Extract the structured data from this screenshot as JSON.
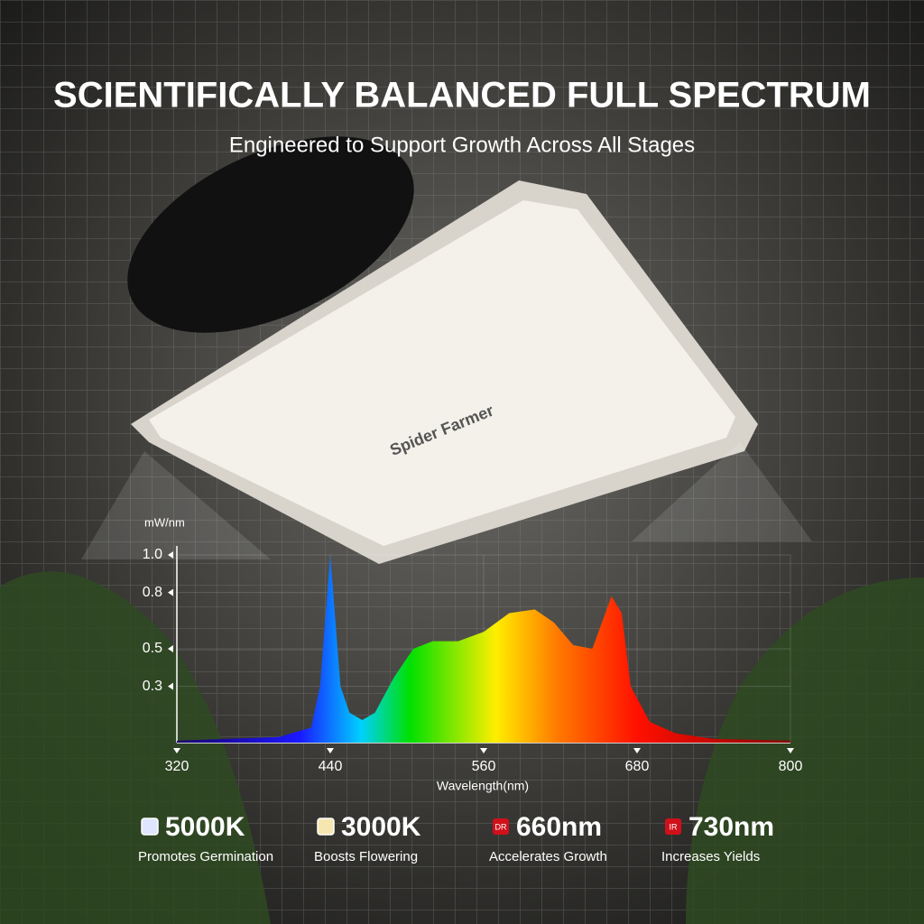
{
  "chart_data": {
    "type": "area",
    "title": "SCIENTIFICALLY BALANCED FULL SPECTRUM",
    "subtitle": "Engineered to Support Growth Across All Stages",
    "y_label": "mW/nm",
    "x_label": "Wavelength(nm)",
    "x": [
      320,
      400,
      425,
      432,
      440,
      448,
      455,
      465,
      475,
      490,
      505,
      520,
      540,
      560,
      580,
      600,
      615,
      630,
      645,
      660,
      668,
      675,
      690,
      710,
      740,
      800
    ],
    "values": [
      0.01,
      0.03,
      0.08,
      0.3,
      1.0,
      0.3,
      0.16,
      0.12,
      0.16,
      0.35,
      0.5,
      0.54,
      0.54,
      0.59,
      0.69,
      0.71,
      0.64,
      0.52,
      0.5,
      0.78,
      0.69,
      0.3,
      0.11,
      0.05,
      0.02,
      0.01
    ],
    "xlim": [
      320,
      800
    ],
    "xticks": [
      320,
      440,
      560,
      680,
      800
    ],
    "ylim": [
      0,
      1
    ],
    "yticks": [
      {
        "value": 0.3,
        "label": "0.3"
      },
      {
        "value": 0.5,
        "label": "0.5"
      },
      {
        "value": 0.8,
        "label": "0.8"
      },
      {
        "value": 1,
        "label": "1.0"
      }
    ]
  },
  "brand": "Spider Farmer",
  "features": [
    {
      "title": "5000K",
      "caption": "Promotes Germination",
      "color": "#dfe6ff"
    },
    {
      "title": "3000K",
      "caption": "Boosts Flowering",
      "color": "#f6e7b0"
    },
    {
      "badge": "DR",
      "title": "660nm",
      "caption": "Accelerates Growth",
      "color": "#d0101a"
    },
    {
      "badge": "IR",
      "title": "730nm",
      "caption": "Increases Yields",
      "color": "#d0101a"
    }
  ]
}
